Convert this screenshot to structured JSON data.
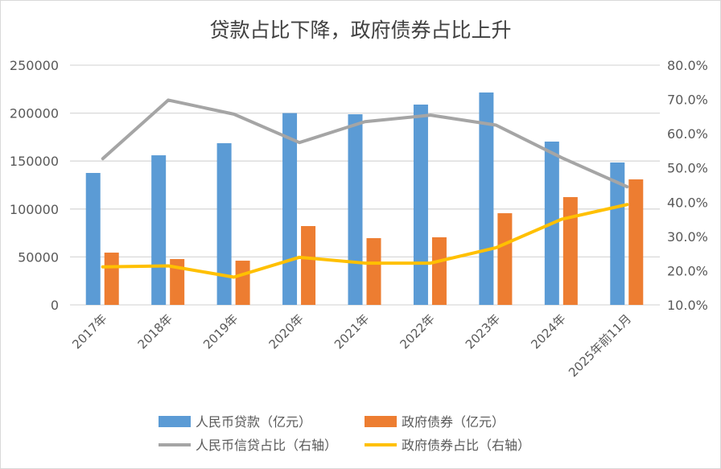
{
  "chart_data": {
    "type": "bar+line",
    "title": "贷款占比下降，政府债券占比上升",
    "categories": [
      "2017年",
      "2018年",
      "2019年",
      "2020年",
      "2021年",
      "2022年",
      "2023年",
      "2024年",
      "2025年前11月"
    ],
    "left_axis": {
      "ylim": [
        0,
        250000
      ],
      "ticks": [
        "0",
        "50000",
        "100000",
        "150000",
        "200000",
        "250000"
      ]
    },
    "right_axis": {
      "ylim": [
        10,
        80
      ],
      "ticks": [
        "10.0%",
        "20.0%",
        "30.0%",
        "40.0%",
        "50.0%",
        "60.0%",
        "70.0%",
        "80.0%"
      ]
    },
    "grid": true,
    "legend_position": "bottom",
    "series": [
      {
        "name": "人民币贷款（亿元）",
        "type": "bar",
        "axis": "left",
        "color": "#5B9BD5",
        "values": [
          137600,
          156000,
          168600,
          200000,
          198800,
          208900,
          221500,
          170300,
          148500
        ]
      },
      {
        "name": "政府债券（亿元）",
        "type": "bar",
        "axis": "left",
        "color": "#ED7D31",
        "values": [
          54500,
          47800,
          46100,
          82200,
          69600,
          70500,
          95600,
          112400,
          130900
        ]
      },
      {
        "name": "人民币信贷占比（右轴）",
        "type": "line",
        "axis": "right",
        "color": "#A5A5A5",
        "values": [
          52.7,
          69.8,
          65.7,
          57.4,
          63.5,
          65.4,
          62.5,
          53.0,
          44.5
        ]
      },
      {
        "name": "政府债券占比（右轴）",
        "type": "line",
        "axis": "right",
        "color": "#FFC000",
        "values": [
          21.1,
          21.4,
          18.1,
          23.9,
          22.2,
          22.2,
          26.7,
          35.0,
          39.3
        ]
      }
    ]
  }
}
